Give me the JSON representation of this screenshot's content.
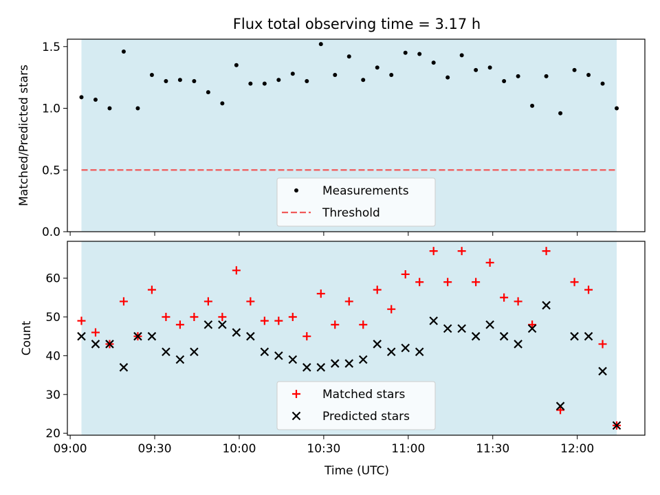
{
  "chart_data": [
    {
      "type": "scatter",
      "title": "Flux total observing time = 3.17 h",
      "xlabel": "",
      "ylabel": "Matched/Predicted stars",
      "xlim": [
        "08:59",
        "12:24"
      ],
      "ylim": [
        0,
        1.56
      ],
      "yticks": [
        "0.0",
        "0.5",
        "1.0",
        "1.5"
      ],
      "shaded_region": {
        "x": [
          "09:04",
          "12:14"
        ],
        "color": "#add8e6"
      },
      "threshold": {
        "name": "Threshold",
        "value": 0.5,
        "x": [
          "09:04",
          "12:14"
        ],
        "color": "#f05a5a",
        "style": "dashed"
      },
      "series": [
        {
          "name": "Measurements",
          "color": "#000000",
          "marker": "dot",
          "x": [
            "09:04",
            "09:09",
            "09:14",
            "09:19",
            "09:24",
            "09:29",
            "09:34",
            "09:39",
            "09:44",
            "09:49",
            "09:54",
            "09:59",
            "10:04",
            "10:09",
            "10:14",
            "10:19",
            "10:24",
            "10:29",
            "10:34",
            "10:39",
            "10:44",
            "10:49",
            "10:54",
            "10:59",
            "11:04",
            "11:09",
            "11:14",
            "11:19",
            "11:24",
            "11:29",
            "11:34",
            "11:39",
            "11:44",
            "11:49",
            "11:54",
            "11:59",
            "12:04",
            "12:09",
            "12:14"
          ],
          "values": [
            1.09,
            1.07,
            1.0,
            1.46,
            1.0,
            1.27,
            1.22,
            1.23,
            1.22,
            1.13,
            1.04,
            1.35,
            1.2,
            1.2,
            1.23,
            1.28,
            1.22,
            1.52,
            1.27,
            1.42,
            1.23,
            1.33,
            1.27,
            1.45,
            1.44,
            1.37,
            1.25,
            1.43,
            1.31,
            1.33,
            1.22,
            1.26,
            1.02,
            1.26,
            0.96,
            1.31,
            1.27,
            1.2,
            1.0
          ]
        }
      ],
      "legend": {
        "placement": "lower center",
        "entries": [
          "Measurements",
          "Threshold"
        ]
      }
    },
    {
      "type": "scatter",
      "title": "",
      "xlabel": "Time (UTC)",
      "ylabel": "Count",
      "xlim": [
        "08:59",
        "12:24"
      ],
      "ylim": [
        19.5,
        69.5
      ],
      "yticks": [
        "20",
        "30",
        "40",
        "50",
        "60"
      ],
      "xticks": [
        "09:00",
        "09:30",
        "10:00",
        "10:30",
        "11:00",
        "11:30",
        "12:00"
      ],
      "shaded_region": {
        "x": [
          "09:04",
          "12:14"
        ],
        "color": "#add8e6"
      },
      "series": [
        {
          "name": "Matched stars",
          "color": "#ff0000",
          "marker": "plus",
          "x": [
            "09:04",
            "09:09",
            "09:14",
            "09:19",
            "09:24",
            "09:29",
            "09:34",
            "09:39",
            "09:44",
            "09:49",
            "09:54",
            "09:59",
            "10:04",
            "10:09",
            "10:14",
            "10:19",
            "10:24",
            "10:29",
            "10:34",
            "10:39",
            "10:44",
            "10:49",
            "10:54",
            "10:59",
            "11:04",
            "11:09",
            "11:14",
            "11:19",
            "11:24",
            "11:29",
            "11:34",
            "11:39",
            "11:44",
            "11:49",
            "11:54",
            "11:59",
            "12:04",
            "12:09",
            "12:14"
          ],
          "values": [
            49,
            46,
            43,
            54,
            45,
            57,
            50,
            48,
            50,
            54,
            50,
            62,
            54,
            49,
            49,
            50,
            45,
            56,
            48,
            54,
            48,
            57,
            52,
            61,
            59,
            67,
            59,
            67,
            59,
            64,
            55,
            54,
            48,
            67,
            26,
            59,
            57,
            43,
            22
          ]
        },
        {
          "name": "Predicted stars",
          "color": "#000000",
          "marker": "x",
          "x": [
            "09:04",
            "09:09",
            "09:14",
            "09:19",
            "09:24",
            "09:29",
            "09:34",
            "09:39",
            "09:44",
            "09:49",
            "09:54",
            "09:59",
            "10:04",
            "10:09",
            "10:14",
            "10:19",
            "10:24",
            "10:29",
            "10:34",
            "10:39",
            "10:44",
            "10:49",
            "10:54",
            "10:59",
            "11:04",
            "11:09",
            "11:14",
            "11:19",
            "11:24",
            "11:29",
            "11:34",
            "11:39",
            "11:44",
            "11:49",
            "11:54",
            "11:59",
            "12:04",
            "12:09",
            "12:14"
          ],
          "values": [
            45,
            43,
            43,
            37,
            45,
            45,
            41,
            39,
            41,
            48,
            48,
            46,
            45,
            41,
            40,
            39,
            37,
            37,
            38,
            38,
            39,
            43,
            41,
            42,
            41,
            49,
            47,
            47,
            45,
            48,
            45,
            43,
            47,
            53,
            27,
            45,
            45,
            36,
            22
          ]
        }
      ],
      "legend": {
        "placement": "lower center",
        "entries": [
          "Matched stars",
          "Predicted stars"
        ]
      }
    }
  ]
}
